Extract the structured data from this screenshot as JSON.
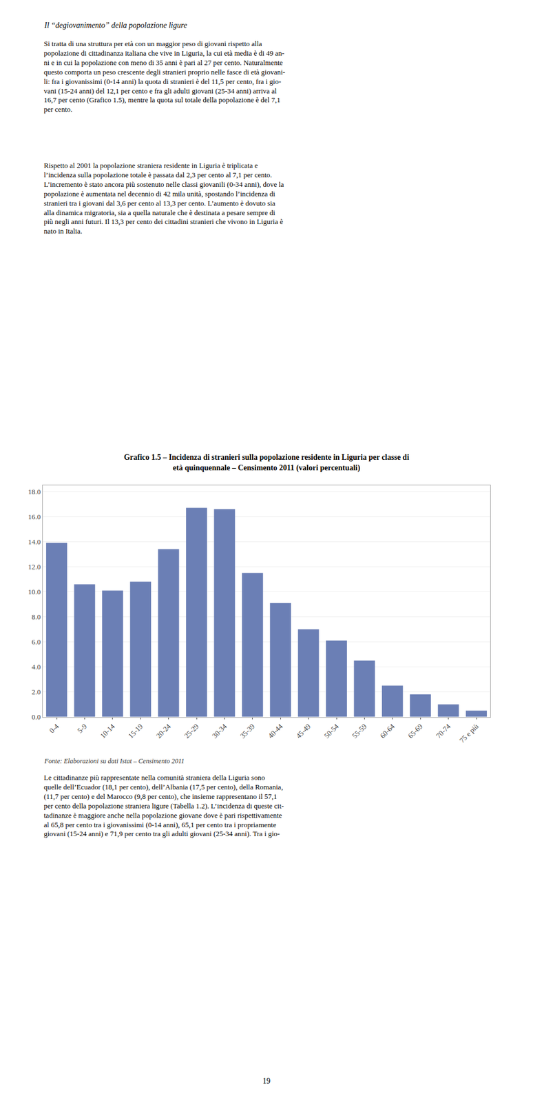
{
  "chart_data": {
    "type": "bar",
    "title": "Grafico 1.5 – Incidenza di stranieri sulla popolazione residente in Liguria per classe di\netà quinquennale – Censimento 2011 (valori percentuali)",
    "categories": [
      "0-4",
      "5-9",
      "10-14",
      "15-19",
      "20-24",
      "25-29",
      "30-34",
      "35-39",
      "40-44",
      "45-49",
      "50-54",
      "55-59",
      "60-64",
      "65-69",
      "70-74",
      "75 e più"
    ],
    "values": [
      13.9,
      10.6,
      10.1,
      10.8,
      13.4,
      16.7,
      16.6,
      11.5,
      9.1,
      7.0,
      6.1,
      4.5,
      2.5,
      1.8,
      1.0,
      0.5
    ],
    "color": "#6B7FB5",
    "ylim": [
      0,
      18.5
    ],
    "yticks": [
      {
        "value": 0.0,
        "label": "0.0"
      },
      {
        "value": 2.0,
        "label": "2.0"
      },
      {
        "value": 4.0,
        "label": "4.0"
      },
      {
        "value": 6.0,
        "label": "6.0"
      },
      {
        "value": 8.0,
        "label": "8.0"
      },
      {
        "value": 10.0,
        "label": "10.0"
      },
      {
        "value": 12.0,
        "label": "12.0"
      },
      {
        "value": 14.0,
        "label": "14.0"
      },
      {
        "value": 16.0,
        "label": "16.0"
      },
      {
        "value": 18.0,
        "label": "18.0"
      }
    ],
    "grid": true,
    "annotations": [
      "Il “degiovanimento” della popolazione ligure",
      "Si tratta di una struttura per età con un maggior peso di giovani rispetto alla\npopolazione di cittadinanza italiana che vive in Liguria, la cui età media è di 49 an-\nni e in cui la popolazione con meno di 35 anni è pari al 27 per cento. Naturalmente\nquesto comporta un peso crescente degli stranieri proprio nelle fasce di età giovani-\nli: fra i giovanissimi (0-14 anni) la quota di stranieri è del 11,5 per cento, fra i gio-\nvani (15-24 anni) del 12,1 per cento e fra gli adulti giovani (25-34 anni) arriva al\n16,7 per cento (Grafico 1.5), mentre la quota sul totale della popolazione è del 7,1\nper cento.",
      "Rispetto al 2001 la popolazione straniera residente in Liguria è triplicata e\nl’incidenza sulla popolazione totale è passata dal 2,3 per cento al 7,1 per cento.\nL’incremento è stato ancora più sostenuto nelle classi giovanili (0-34 anni), dove la\npopolazione è aumentata nel decennio di 42 mila unità, spostando l’incidenza di\nstranieri tra i giovani dal 3,6 per cento al 13,3 per cento. L’aumento è dovuto sia\nalla dinamica migratoria, sia a quella naturale che è destinata a pesare sempre di\npiù negli anni futuri. Il 13,3 per cento dei cittadini stranieri che vivono in Liguria è\nnato in Italia.",
      "Fonte: Elaborazioni su dati Istat – Censimento 2011",
      "Le cittadinanze più rappresentate nella comunità straniera della Liguria sono\nquelle dell’Ecuador (18,1 per cento), dell’Albania (17,5 per cento), della Romania,\n(11,7 per cento) e del Marocco (9,8 per cento), che insieme rappresentano il 57,1\nper cento della popolazione straniera ligure (Tabella 1.2). L’incidenza di queste cit-\ntadinanze è maggiore anche nella popolazione giovane dove è pari rispettivamente\nal 65,8 per cento tra i giovanissimi (0-14 anni), 65,1 per cento tra i propriamente\ngiovani (15-24 anni) e 71,9 per cento tra gli adulti giovani (25-34 anni). Tra i gio-",
      "19"
    ]
  }
}
